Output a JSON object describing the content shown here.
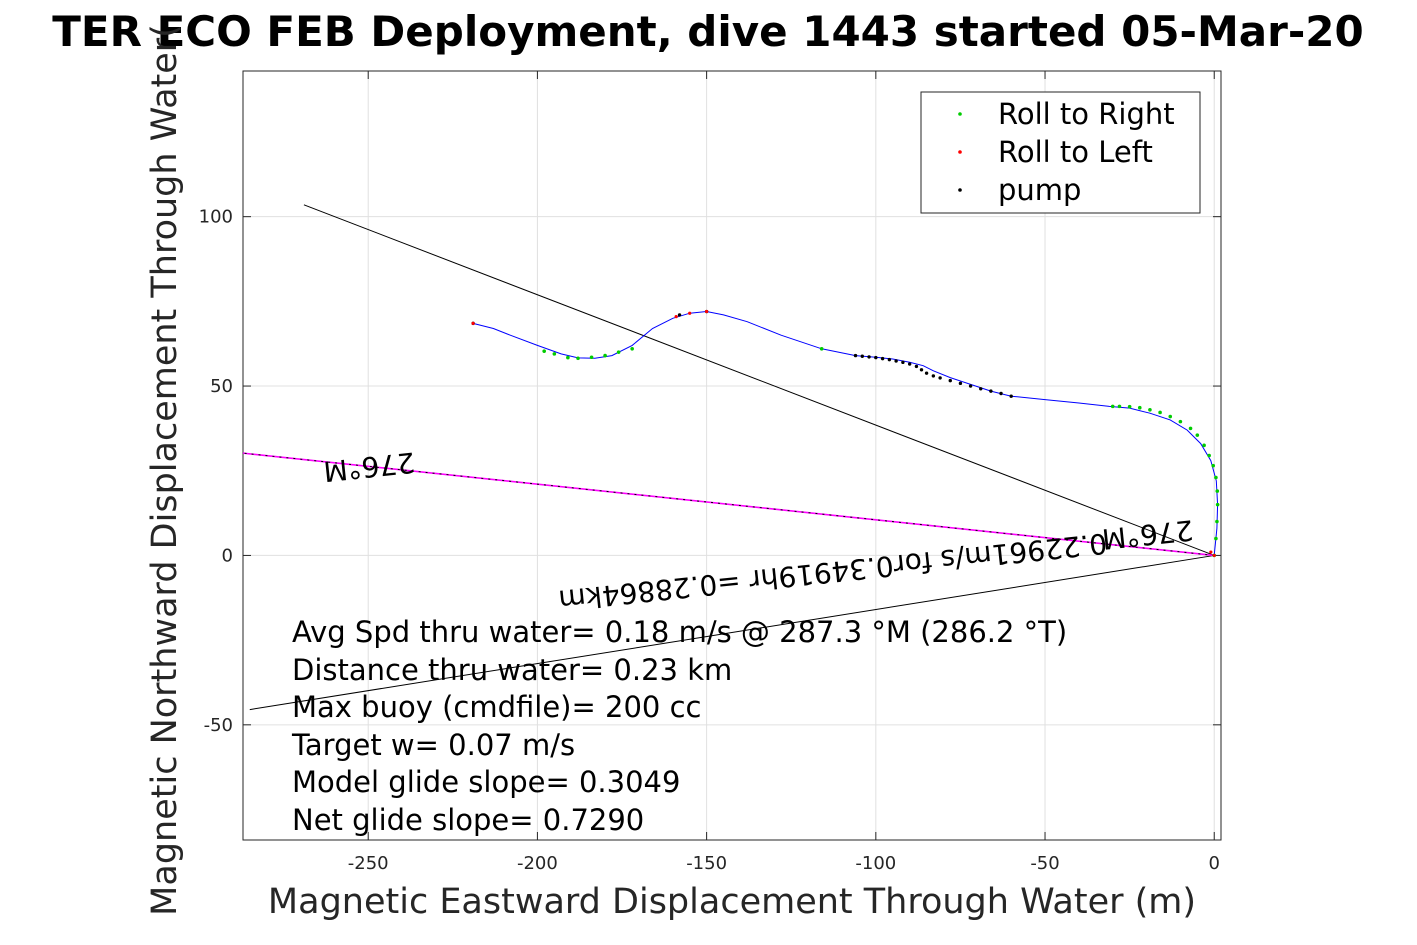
{
  "chart_data": {
    "type": "line",
    "title": "TER ECO FEB Deployment, dive 1443 started 05-Mar-20",
    "xlabel": "Magnetic Eastward Displacement Through Water (m)",
    "ylabel": "Magnetic Northward Displacement Through Water(",
    "xlim": [
      -287,
      2
    ],
    "ylim": [
      -84,
      143
    ],
    "xticks": [
      -250,
      -200,
      -150,
      -100,
      -50,
      0
    ],
    "yticks": [
      -50,
      0,
      50,
      100
    ],
    "grid": true,
    "legend": {
      "placement": "top-right",
      "entries": [
        {
          "name": "Roll to Right",
          "color": "#00cc00"
        },
        {
          "name": "Roll to Left",
          "color": "#ff0000"
        },
        {
          "name": "pump",
          "color": "#000000"
        }
      ]
    },
    "track": {
      "color": "#0000ff",
      "x": [
        0,
        0.8,
        1.0,
        0.6,
        -1,
        -4,
        -8,
        -13,
        -19,
        -25,
        -31,
        -40,
        -50,
        -60,
        -66,
        -72,
        -78,
        -83,
        -86,
        -90,
        -95,
        -100,
        -106,
        -116,
        -128,
        -138,
        -145,
        -150,
        -155,
        -160,
        -166,
        -172,
        -178,
        -183,
        -188,
        -193,
        -200,
        -208,
        -213,
        -219
      ],
      "y": [
        0,
        8,
        15,
        22,
        28,
        33,
        37,
        40,
        42,
        43.5,
        44,
        45,
        46,
        47,
        48.5,
        50.5,
        52.5,
        54.5,
        56,
        57,
        58,
        58.5,
        59,
        61,
        65,
        69,
        71,
        72,
        71.5,
        70,
        67,
        62,
        59,
        58.2,
        58.3,
        59.5,
        62,
        65,
        67,
        68.5
      ]
    },
    "roll_right_points": {
      "color": "#00cc00",
      "x": [
        0,
        0.5,
        0.8,
        1.0,
        0.9,
        0.5,
        -0.3,
        -1.5,
        -3,
        -5,
        -7,
        -10,
        -13,
        -16,
        -19,
        -22,
        -25,
        -28,
        -30,
        -116,
        -172,
        -176,
        -180,
        -184,
        -188,
        -191,
        -195,
        -198
      ],
      "y": [
        0,
        5,
        10,
        15,
        19,
        23,
        26.5,
        29.5,
        32.5,
        35.5,
        37.5,
        39.5,
        41,
        42.2,
        43,
        43.6,
        43.9,
        44,
        44,
        61,
        61,
        60,
        59,
        58.5,
        58.2,
        58.4,
        59.5,
        60.3
      ]
    },
    "roll_left_points": {
      "color": "#ff0000",
      "x": [
        0,
        -1,
        -150,
        -155,
        -159,
        -219
      ],
      "y": [
        0,
        1,
        72,
        71.5,
        70.5,
        68.5
      ]
    },
    "pump_points": {
      "color": "#000000",
      "x": [
        -106,
        -104,
        -102,
        -100,
        -98,
        -96,
        -94,
        -92,
        -90,
        -88,
        -86.5,
        -85,
        -83,
        -81,
        -78,
        -75,
        -72,
        -69,
        -66,
        -63,
        -60,
        -150,
        -158,
        -219
      ],
      "y": [
        59,
        58.8,
        58.6,
        58.4,
        58.1,
        57.8,
        57.4,
        57,
        56.5,
        55.8,
        54.8,
        53.8,
        53,
        52.4,
        51.6,
        50.8,
        50,
        49.2,
        48.5,
        47.8,
        47,
        72,
        71,
        68.5
      ]
    },
    "reference_lines": [
      {
        "name": "black-upper-line",
        "color": "#000000",
        "x": [
          -269,
          0
        ],
        "y": [
          103.5,
          0
        ]
      },
      {
        "name": "black-lower-line",
        "color": "#000000",
        "x": [
          0,
          -285
        ],
        "y": [
          0,
          -45.5
        ]
      },
      {
        "name": "magenta-heading-line",
        "color": "#ff00ff",
        "x": [
          0,
          -287
        ],
        "y": [
          0,
          30.2
        ]
      },
      {
        "name": "black-heading-line",
        "color": "#000000",
        "x": [
          0,
          -287
        ],
        "y": [
          0,
          30.2
        ]
      }
    ],
    "rotated_labels": [
      {
        "text": "276°M",
        "x": -250,
        "y": 29,
        "angle_deg": 174
      },
      {
        "text": "276°M",
        "x": -20,
        "y": 9,
        "angle_deg": 174
      },
      {
        "text": "0.22961m/s for0.34919hr =0.28864km",
        "x": -113,
        "y": -2,
        "angle_deg": 174
      }
    ],
    "annotations": [
      "Avg Spd thru water=  0.18 m/s @ 287.3 °M (286.2 °T)",
      "Distance thru water=  0.23 km",
      "Max buoy (cmdfile)= 200 cc",
      "Target w= 0.07 m/s",
      "Model glide slope= 0.3049",
      "Net glide slope= 0.7290"
    ]
  }
}
